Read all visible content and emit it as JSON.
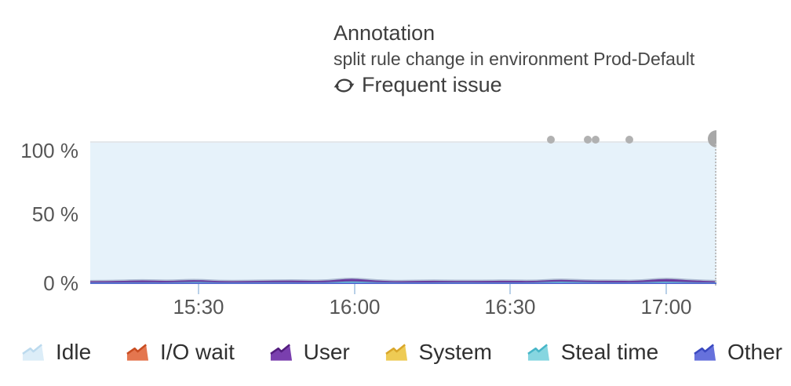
{
  "annotation": {
    "title": "Annotation",
    "subtitle": "split rule change in environment Prod-Default",
    "frequent_issue_label": "Frequent issue",
    "frequent_issue_icon": "loop-repeat-icon"
  },
  "colors": {
    "plot_fill": "#e6f2fa",
    "gridline_top": "#e3e7ea",
    "gridline_50": "#dde9f2",
    "tick": "#b9d0e8",
    "axis_text": "#565656",
    "event_dot": "#b1b1b1",
    "event_cluster": "#a8a8a8",
    "now_line_dotted": "#bdbdbd",
    "stack_top_stroke": "#a9b6ce",
    "header_text": "#3e3e3e",
    "legend_text": "#303030"
  },
  "chart_data": {
    "type": "area",
    "stacked": true,
    "unit": "%",
    "title": "",
    "xlabel": "",
    "ylabel": "",
    "ylim": [
      0,
      100
    ],
    "y_ticks": [
      "100 %",
      "50 %",
      "0 %"
    ],
    "x_ticks": [
      "15:30",
      "16:00",
      "16:30",
      "17:00"
    ],
    "x_range": [
      "15:10",
      "17:10"
    ],
    "x": [
      "15:10",
      "15:15",
      "15:20",
      "15:25",
      "15:30",
      "15:35",
      "15:40",
      "15:45",
      "15:50",
      "15:55",
      "16:00",
      "16:05",
      "16:10",
      "16:15",
      "16:20",
      "16:25",
      "16:30",
      "16:35",
      "16:40",
      "16:45",
      "16:50",
      "16:55",
      "17:00",
      "17:05",
      "17:10"
    ],
    "legend_position": "bottom",
    "grid": true,
    "series": [
      {
        "name": "Idle",
        "fill": "#e6f2fa",
        "legend_fill": "#dcedf8",
        "legend_edge": "#bcdaee",
        "values": [
          97.6,
          97.5,
          96.9,
          97.5,
          96.6,
          97.6,
          97.5,
          97.2,
          97.1,
          97.5,
          95.5,
          97.3,
          97.6,
          97.2,
          97.4,
          97.4,
          97.2,
          97.5,
          96.4,
          97.3,
          97.2,
          97.5,
          95.7,
          97.0,
          97.6
        ]
      },
      {
        "name": "I/O wait",
        "fill": "#e2714b",
        "legend_fill": "#e4764f",
        "legend_edge": "#c94d22",
        "values": [
          0.1,
          0.1,
          0.1,
          0.1,
          0.1,
          0.1,
          0.1,
          0.1,
          0.1,
          0.1,
          0.1,
          0.1,
          0.1,
          0.1,
          0.1,
          0.1,
          0.1,
          0.1,
          0.1,
          0.1,
          0.1,
          0.1,
          0.1,
          0.1,
          0.1
        ]
      },
      {
        "name": "User",
        "fill": "#6a3a9f",
        "legend_fill": "#7a3fae",
        "legend_edge": "#531d7e",
        "values": [
          1.0,
          1.1,
          1.6,
          1.1,
          1.5,
          1.0,
          1.1,
          1.3,
          1.5,
          1.1,
          2.2,
          1.2,
          1.0,
          1.4,
          1.1,
          1.2,
          1.4,
          1.1,
          1.5,
          1.2,
          1.4,
          1.1,
          2.2,
          1.5,
          1.0
        ]
      },
      {
        "name": "System",
        "fill": "#ecc84e",
        "legend_fill": "#eecb54",
        "legend_edge": "#d9a62a",
        "values": [
          0.2,
          0.2,
          0.2,
          0.2,
          0.2,
          0.2,
          0.2,
          0.2,
          0.2,
          0.2,
          0.2,
          0.2,
          0.2,
          0.2,
          0.2,
          0.2,
          0.2,
          0.2,
          0.2,
          0.2,
          0.2,
          0.2,
          0.2,
          0.2,
          0.2
        ]
      },
      {
        "name": "Steal time",
        "fill": "#66c8d7",
        "legend_fill": "#86d6e0",
        "legend_edge": "#47b6c8",
        "values": [
          0.2,
          0.2,
          0.3,
          0.2,
          0.7,
          0.2,
          0.2,
          0.3,
          0.2,
          0.2,
          1.1,
          0.3,
          0.2,
          0.2,
          0.3,
          0.2,
          0.2,
          0.2,
          0.9,
          0.3,
          0.2,
          0.2,
          0.9,
          0.3,
          0.2
        ]
      },
      {
        "name": "Other",
        "fill": "#5463cf",
        "legend_fill": "#6671dc",
        "legend_edge": "#3a49c0",
        "values": [
          0.9,
          0.9,
          0.9,
          0.9,
          0.9,
          0.9,
          0.9,
          0.9,
          0.9,
          0.9,
          0.9,
          0.9,
          0.9,
          0.9,
          0.9,
          0.9,
          0.9,
          0.9,
          0.9,
          0.9,
          0.9,
          0.9,
          0.9,
          0.9,
          0.9
        ]
      }
    ],
    "stack_order_bottom_to_top": [
      "Other",
      "Steal time",
      "User",
      "System",
      "I/O wait"
    ],
    "annotations": {
      "dots": [
        {
          "time": "16:38",
          "x_frac": 0.7356
        },
        {
          "time": "16:45",
          "x_frac": 0.7945
        },
        {
          "time": "16:46",
          "x_frac": 0.807
        },
        {
          "time": "16:53",
          "x_frac": 0.8609
        }
      ],
      "cluster": {
        "time": "17:09",
        "x_frac": 1.0
      }
    }
  }
}
